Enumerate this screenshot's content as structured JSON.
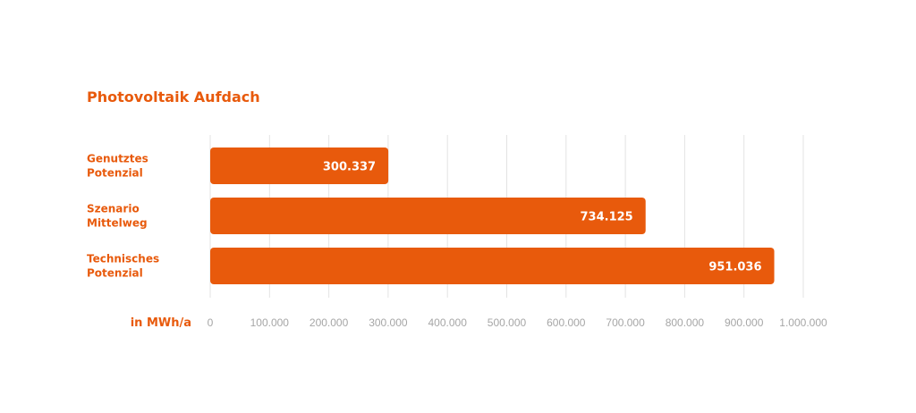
{
  "colors": {
    "accent": "#E85A0C",
    "grid": "#E3E3E3",
    "tick_text": "#A6A6A6",
    "value_text": "#FFFFFF"
  },
  "chart_data": {
    "type": "bar",
    "orientation": "horizontal",
    "title": "Photovoltaik Aufdach",
    "unit_label": "in MWh/a",
    "categories": [
      [
        "Genutztes",
        "Potenzial"
      ],
      [
        "Szenario",
        "Mittelweg"
      ],
      [
        "Technisches",
        "Potenzial"
      ]
    ],
    "values": [
      300337,
      734125,
      951036
    ],
    "value_labels": [
      "300.337",
      "734.125",
      "951.036"
    ],
    "xlim": [
      0,
      1000000
    ],
    "ticks": [
      0,
      100000,
      200000,
      300000,
      400000,
      500000,
      600000,
      700000,
      800000,
      900000,
      1000000
    ],
    "tick_labels": [
      "0",
      "100.000",
      "200.000",
      "300.000",
      "400.000",
      "500.000",
      "600.000",
      "700.000",
      "800.000",
      "900.000",
      "1.000.000"
    ],
    "grid": true,
    "legend": "none"
  }
}
